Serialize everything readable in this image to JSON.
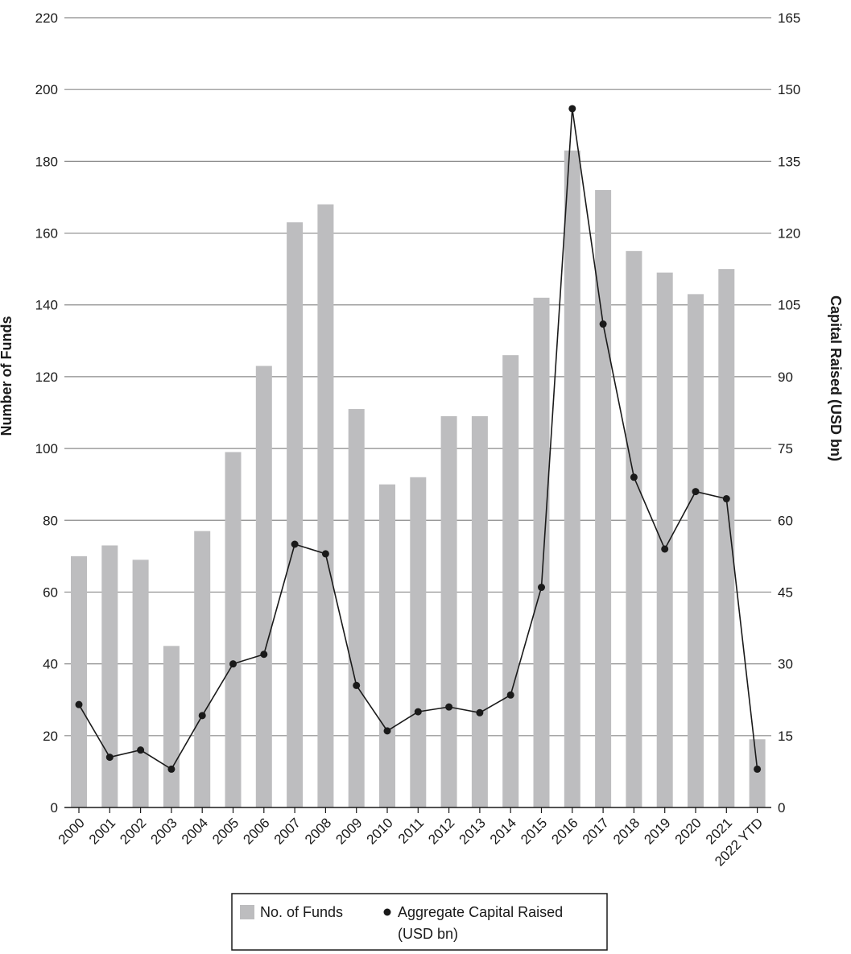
{
  "chart_data": {
    "type": "bar+line",
    "categories": [
      "2000",
      "2001",
      "2002",
      "2003",
      "2004",
      "2005",
      "2006",
      "2007",
      "2008",
      "2009",
      "2010",
      "2011",
      "2012",
      "2013",
      "2014",
      "2015",
      "2016",
      "2017",
      "2018",
      "2019",
      "2020",
      "2021",
      "2022 YTD"
    ],
    "series": [
      {
        "name": "No. of Funds",
        "type": "bar",
        "axis": "left",
        "color": "#bdbdbf",
        "values": [
          70,
          73,
          69,
          45,
          77,
          99,
          123,
          163,
          168,
          111,
          90,
          92,
          109,
          109,
          126,
          142,
          183,
          172,
          155,
          149,
          143,
          150,
          19
        ]
      },
      {
        "name": "Aggregate Capital Raised (USD bn)",
        "name_lines": [
          "Aggregate Capital Raised",
          "(USD bn)"
        ],
        "type": "line",
        "axis": "right",
        "color": "#1a1a1a",
        "values": [
          21.5,
          10.5,
          12,
          8,
          19.2,
          30,
          32,
          55,
          53,
          25.5,
          16,
          20,
          21,
          19.8,
          23.5,
          46,
          146,
          101,
          69,
          54,
          66,
          64.5,
          8
        ]
      }
    ],
    "left_axis": {
      "label": "Number of Funds",
      "min": 0,
      "max": 220,
      "ticks": [
        0,
        20,
        40,
        60,
        80,
        100,
        120,
        140,
        160,
        180,
        200,
        220
      ]
    },
    "right_axis": {
      "label": "Capital Raised (USD bn)",
      "min": 0,
      "max": 165,
      "ticks": [
        0,
        15,
        30,
        45,
        60,
        75,
        90,
        105,
        120,
        135,
        150,
        165
      ]
    },
    "grid": true,
    "legend_position": "bottom-center"
  }
}
